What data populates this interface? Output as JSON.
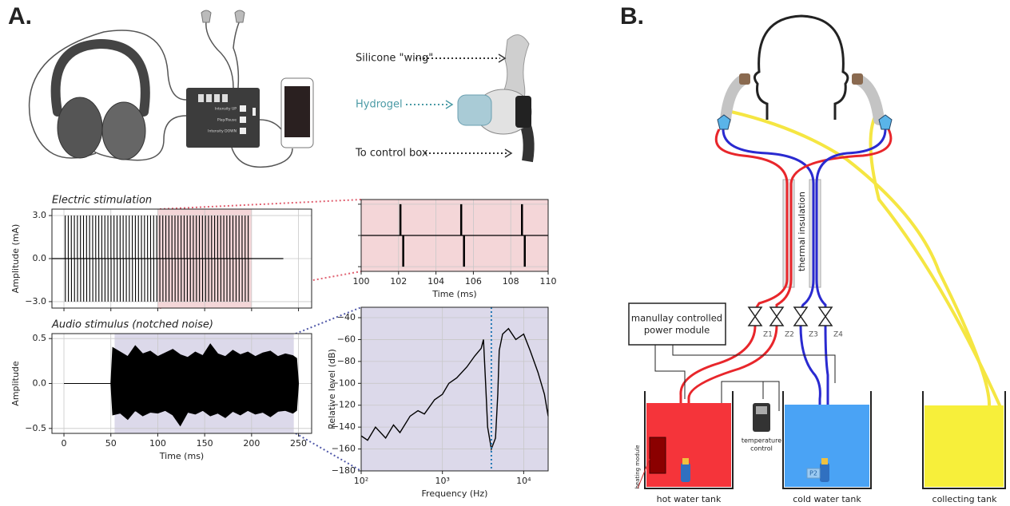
{
  "panel_a": {
    "label": "A.",
    "device": {
      "buttons": [
        "Intensity UP",
        "Play/Pause",
        "Intensity DOWN"
      ],
      "callouts": [
        "Silicone \"wing\"",
        "Hydrogel",
        "To control box"
      ]
    },
    "electric": {
      "type": "pulse",
      "title": "Electric stimulation",
      "ylabel": "Amplitude (mA)",
      "xlim": [
        -12.8,
        264
      ],
      "ylim": [
        -3.45,
        3.45
      ],
      "xgrid": [
        0,
        50,
        100,
        150,
        200,
        250
      ],
      "yticks": [
        {
          "value": 3,
          "label": "3.0"
        },
        {
          "value": 0,
          "label": "0.0"
        },
        {
          "value": -3,
          "label": "−3.0"
        }
      ],
      "grid": true,
      "highlight": [
        100,
        200
      ],
      "highlight_color": "#f4d6d8",
      "color": "#000000",
      "onsets": [
        1.35,
        4.6,
        7.85,
        11.1,
        14.35,
        17.6,
        20.85,
        24.1,
        27.35,
        30.6,
        33.85,
        37.1,
        40.35,
        43.6,
        46.85,
        50.1,
        53.35,
        56.6,
        59.85,
        63.1,
        66.35,
        69.6,
        72.85,
        76.1,
        79.35,
        82.6,
        85.85,
        89.1,
        92.35,
        95.6,
        98.85,
        102.1,
        105.35,
        108.6,
        111.85,
        115.1,
        118.35,
        121.6,
        124.85,
        128.1,
        131.35,
        134.6,
        137.85,
        141.1,
        144.35,
        147.6,
        150.85,
        154.1,
        157.35,
        160.6,
        163.85,
        167.1,
        170.35,
        173.6,
        176.85,
        180.1,
        183.35,
        186.6,
        189.85,
        193.1,
        196.35
      ],
      "amplitudes": [
        3,
        -3
      ],
      "phase_gap_ms": 0.15
    },
    "zoom": {
      "type": "pulse",
      "xlabel": "Time (ms)",
      "xlim": [
        100,
        110
      ],
      "ylim": [
        -3.45,
        3.45
      ],
      "xticks": [
        100,
        102,
        104,
        106,
        108,
        110
      ],
      "ygrid": [
        -3,
        0,
        3
      ],
      "grid": true,
      "background": "#f4d6d8",
      "color": "#000000"
    },
    "audio": {
      "type": "area",
      "title": "Audio stimulus (notched noise)",
      "ylabel": "Amplitude",
      "xlabel": "Time (ms)",
      "xlim": [
        -12.8,
        264
      ],
      "ylim": [
        -0.555,
        0.555
      ],
      "xticks": [
        0,
        50,
        100,
        150,
        200,
        250
      ],
      "yticks": [
        {
          "value": 0.5,
          "label": "0.5"
        },
        {
          "value": 0,
          "label": "0.0"
        },
        {
          "value": -0.5,
          "label": "−0.5"
        }
      ],
      "grid": true,
      "highlight": [
        54,
        245
      ],
      "highlight_color": "#dcd9ea",
      "color": "#000000",
      "x": [
        0,
        50,
        52,
        60,
        68,
        76,
        84,
        92,
        100,
        108,
        116,
        124,
        132,
        140,
        148,
        156,
        164,
        172,
        180,
        188,
        196,
        204,
        212,
        220,
        228,
        236,
        244,
        248,
        250
      ],
      "upper": [
        0,
        0,
        0.4,
        0.35,
        0.3,
        0.42,
        0.33,
        0.36,
        0.3,
        0.34,
        0.38,
        0.32,
        0.29,
        0.35,
        0.31,
        0.44,
        0.33,
        0.3,
        0.37,
        0.32,
        0.35,
        0.3,
        0.34,
        0.36,
        0.3,
        0.33,
        0.31,
        0.28,
        0
      ],
      "lower": [
        0,
        0,
        -0.35,
        -0.33,
        -0.4,
        -0.3,
        -0.36,
        -0.32,
        -0.33,
        -0.3,
        -0.35,
        -0.47,
        -0.32,
        -0.34,
        -0.3,
        -0.36,
        -0.33,
        -0.38,
        -0.31,
        -0.35,
        -0.3,
        -0.34,
        -0.32,
        -0.37,
        -0.31,
        -0.3,
        -0.33,
        -0.3,
        0
      ]
    },
    "spectrum": {
      "type": "line",
      "xlabel": "Frequency (Hz)",
      "ylabel": "Relative level (dB)",
      "xscale": "log",
      "xlim": [
        100,
        20000
      ],
      "ylim": [
        -180,
        -30.5
      ],
      "xticks": [
        {
          "value": 100,
          "label": "10²"
        },
        {
          "value": 1000,
          "label": "10³"
        },
        {
          "value": 10000,
          "label": "10⁴"
        }
      ],
      "yticks": [
        {
          "value": -40,
          "label": "−40"
        },
        {
          "value": -60,
          "label": "−60"
        },
        {
          "value": -80,
          "label": "−80"
        },
        {
          "value": -100,
          "label": "−100"
        },
        {
          "value": -120,
          "label": "−120"
        },
        {
          "value": -140,
          "label": "−140"
        },
        {
          "value": -160,
          "label": "−160"
        },
        {
          "value": -180,
          "label": "−180"
        }
      ],
      "grid": true,
      "background": "#dcd9ea",
      "color": "#000000",
      "x": [
        100,
        120,
        150,
        200,
        250,
        300,
        400,
        500,
        600,
        800,
        1000,
        1200,
        1500,
        2000,
        2500,
        3000,
        3200,
        3400,
        3600,
        4000,
        4500,
        4800,
        5000,
        5500,
        6500,
        8000,
        10000,
        12000,
        15000,
        18000,
        20000
      ],
      "values": [
        -148,
        -152,
        -140,
        -150,
        -138,
        -145,
        -130,
        -125,
        -128,
        -115,
        -110,
        -100,
        -95,
        -85,
        -75,
        -68,
        -60,
        -100,
        -140,
        -160,
        -150,
        -110,
        -70,
        -55,
        -50,
        -60,
        -55,
        -70,
        -90,
        -110,
        -130
      ],
      "notch": 4000,
      "notch_color": "#1f77b4"
    }
  },
  "panel_b": {
    "label": "B.",
    "insulation": "thermal insulation",
    "power_module": [
      "manullay controlled",
      "power module"
    ],
    "valves": [
      "Z1",
      "Z2",
      "Z3",
      "Z4"
    ],
    "heating_module": "heating module",
    "temperature_control": [
      "temperature",
      "control"
    ],
    "pump_label": "P2",
    "tanks": [
      "hot water tank",
      "cold water tank",
      "collecting tank"
    ]
  }
}
